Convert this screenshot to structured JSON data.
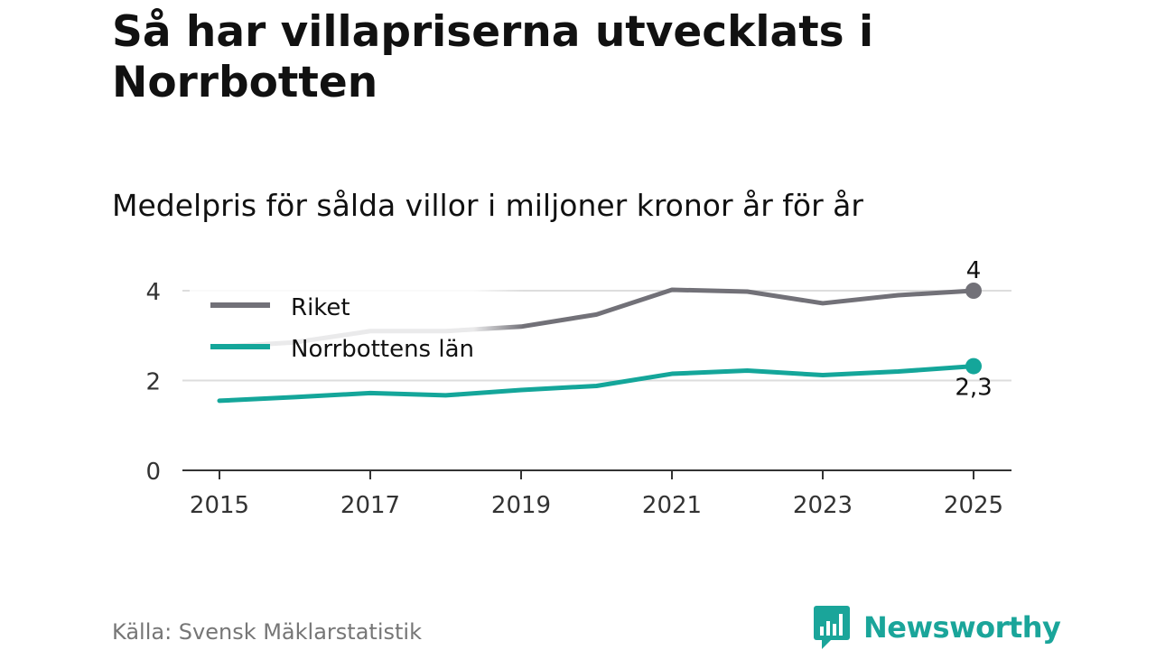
{
  "header": {
    "title": "Så har villapriserna utvecklats i Norrbotten",
    "subtitle": "Medelpris för sålda villor i miljoner kronor år för år"
  },
  "footer": {
    "source": "Källa: Svensk Mäklarstatistik",
    "brand": "Newsworthy"
  },
  "colors": {
    "riket": "#727178",
    "norrbotten": "#14a69a",
    "grid": "#dddddd",
    "axis": "#333333"
  },
  "chart_data": {
    "type": "line",
    "x": [
      2015,
      2016,
      2017,
      2018,
      2019,
      2020,
      2021,
      2022,
      2023,
      2024,
      2025
    ],
    "xticks": [
      "2015",
      "2017",
      "2019",
      "2021",
      "2023",
      "2025"
    ],
    "yticks": [
      "0",
      "2",
      "4"
    ],
    "ylim": [
      0,
      4.5
    ],
    "legend_position": "top-left",
    "series": [
      {
        "name": "Riket",
        "values": [
          2.75,
          2.85,
          3.1,
          3.1,
          3.2,
          3.47,
          4.02,
          3.98,
          3.72,
          3.9,
          4.0
        ],
        "end_label": "4"
      },
      {
        "name": "Norrbottens län",
        "values": [
          1.55,
          1.63,
          1.72,
          1.67,
          1.79,
          1.88,
          2.15,
          2.22,
          2.12,
          2.2,
          2.32
        ],
        "end_label": "2,3"
      }
    ]
  }
}
